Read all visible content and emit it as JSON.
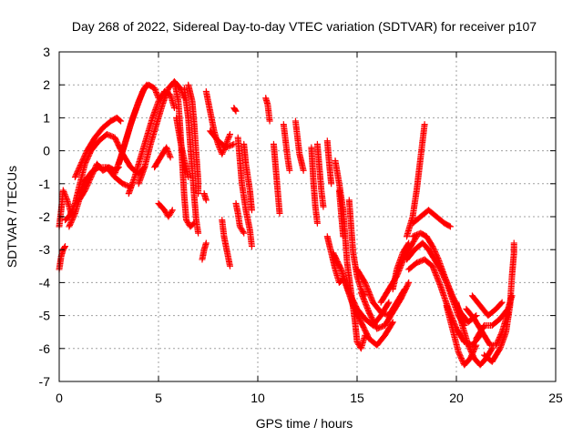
{
  "chart_data": {
    "type": "scatter",
    "title": "Day 268 of 2022, Sidereal Day-to-day VTEC variation (SDTVAR) for receiver p107",
    "xlabel": "GPS time / hours",
    "ylabel": "SDTVAR / TECUs",
    "xlim": [
      0,
      25
    ],
    "ylim": [
      -7,
      3
    ],
    "xticks": [
      "0",
      "5",
      "10",
      "15",
      "20",
      "25"
    ],
    "yticks": [
      "-7",
      "-6",
      "-5",
      "-4",
      "-3",
      "-2",
      "-1",
      "0",
      "1",
      "2",
      "3"
    ],
    "grid": true,
    "marker": "+",
    "series_color": "#ff0000",
    "tracks": [
      [
        [
          0.0,
          -2.3
        ],
        [
          0.1,
          -1.8
        ],
        [
          0.2,
          -1.2
        ],
        [
          0.4,
          -1.5
        ],
        [
          0.6,
          -1.9
        ]
      ],
      [
        [
          0.0,
          -3.6
        ],
        [
          0.1,
          -3.2
        ],
        [
          0.2,
          -3.0
        ],
        [
          0.3,
          -2.9
        ]
      ],
      [
        [
          0.3,
          -2.1
        ],
        [
          0.5,
          -2.0
        ],
        [
          0.8,
          -1.6
        ],
        [
          1.0,
          -1.1
        ],
        [
          1.3,
          -0.4
        ],
        [
          1.6,
          0.0
        ],
        [
          2.0,
          0.3
        ],
        [
          2.4,
          0.5
        ],
        [
          2.8,
          0.4
        ],
        [
          3.2,
          -0.1
        ],
        [
          3.6,
          -0.5
        ],
        [
          4.0,
          -0.7
        ],
        [
          4.3,
          -0.5
        ]
      ],
      [
        [
          0.5,
          -2.3
        ],
        [
          0.8,
          -1.9
        ],
        [
          1.0,
          -1.5
        ],
        [
          1.3,
          -1.2
        ],
        [
          1.6,
          -0.8
        ],
        [
          1.9,
          -0.4
        ],
        [
          2.2,
          -0.6
        ],
        [
          2.5,
          -0.5
        ],
        [
          2.8,
          -0.6
        ],
        [
          3.0,
          -0.5
        ]
      ],
      [
        [
          0.8,
          -0.8
        ],
        [
          1.1,
          -0.4
        ],
        [
          1.4,
          0.0
        ],
        [
          1.8,
          0.4
        ],
        [
          2.2,
          0.7
        ],
        [
          2.6,
          0.9
        ],
        [
          2.9,
          1.0
        ],
        [
          3.1,
          0.9
        ]
      ],
      [
        [
          1.0,
          -1.3
        ],
        [
          1.3,
          -0.9
        ],
        [
          1.7,
          -0.6
        ],
        [
          2.0,
          -0.5
        ],
        [
          2.4,
          -0.5
        ],
        [
          2.8,
          -0.8
        ],
        [
          3.2,
          -1.0
        ],
        [
          3.6,
          -1.1
        ]
      ],
      [
        [
          2.8,
          -0.7
        ],
        [
          3.1,
          -0.2
        ],
        [
          3.4,
          0.4
        ],
        [
          3.7,
          1.0
        ],
        [
          4.0,
          1.5
        ],
        [
          4.3,
          1.9
        ],
        [
          4.5,
          2.0
        ],
        [
          4.8,
          1.9
        ],
        [
          5.0,
          1.6
        ]
      ],
      [
        [
          3.5,
          -1.3
        ],
        [
          3.8,
          -0.8
        ],
        [
          4.1,
          -0.2
        ],
        [
          4.4,
          0.4
        ],
        [
          4.7,
          1.0
        ],
        [
          5.0,
          1.5
        ],
        [
          5.3,
          1.8
        ],
        [
          5.6,
          1.7
        ],
        [
          5.8,
          1.3
        ]
      ],
      [
        [
          4.0,
          -1.0
        ],
        [
          4.3,
          -0.5
        ],
        [
          4.6,
          0.2
        ],
        [
          4.9,
          0.8
        ],
        [
          5.2,
          1.4
        ],
        [
          5.5,
          1.9
        ],
        [
          5.8,
          2.1
        ],
        [
          6.1,
          1.9
        ],
        [
          6.3,
          1.6
        ]
      ],
      [
        [
          3.0,
          -0.4
        ],
        [
          3.3,
          0.2
        ],
        [
          3.6,
          0.8
        ],
        [
          3.9,
          1.3
        ],
        [
          4.2,
          1.8
        ],
        [
          4.4,
          2.0
        ]
      ],
      [
        [
          5.0,
          -1.6
        ],
        [
          5.3,
          -1.8
        ],
        [
          5.5,
          -2.0
        ],
        [
          5.7,
          -1.8
        ]
      ],
      [
        [
          4.8,
          -0.5
        ],
        [
          5.1,
          -0.2
        ],
        [
          5.4,
          0.1
        ],
        [
          5.6,
          -0.2
        ]
      ],
      [
        [
          5.8,
          2.1
        ],
        [
          6.0,
          1.5
        ],
        [
          6.1,
          0.6
        ],
        [
          6.2,
          -0.4
        ],
        [
          6.3,
          -1.4
        ],
        [
          6.4,
          -2.1
        ],
        [
          6.6,
          -2.3
        ],
        [
          6.8,
          -2.2
        ]
      ],
      [
        [
          6.3,
          1.9
        ],
        [
          6.5,
          1.0
        ],
        [
          6.6,
          0.2
        ],
        [
          6.7,
          -0.6
        ],
        [
          6.8,
          -1.4
        ],
        [
          6.9,
          -2.1
        ],
        [
          7.0,
          -2.5
        ]
      ],
      [
        [
          6.5,
          2.0
        ],
        [
          6.7,
          1.5
        ],
        [
          6.8,
          0.8
        ],
        [
          6.9,
          -0.1
        ],
        [
          7.0,
          -0.9
        ],
        [
          7.0,
          -1.3
        ]
      ],
      [
        [
          5.9,
          1.0
        ],
        [
          6.1,
          0.3
        ],
        [
          6.3,
          -0.3
        ],
        [
          6.5,
          -0.8
        ]
      ],
      [
        [
          7.4,
          1.8
        ],
        [
          7.6,
          1.2
        ],
        [
          7.8,
          0.6
        ],
        [
          8.0,
          0.2
        ],
        [
          8.2,
          -0.1
        ],
        [
          8.4,
          0.2
        ],
        [
          8.6,
          0.5
        ]
      ],
      [
        [
          7.6,
          0.6
        ],
        [
          8.0,
          0.3
        ],
        [
          8.4,
          0.1
        ],
        [
          8.8,
          0.2
        ]
      ],
      [
        [
          7.3,
          -1.3
        ],
        [
          7.4,
          -1.5
        ]
      ],
      [
        [
          7.2,
          -3.3
        ],
        [
          7.3,
          -3.0
        ],
        [
          7.4,
          -2.8
        ]
      ],
      [
        [
          8.2,
          -2.1
        ],
        [
          8.3,
          -2.6
        ],
        [
          8.5,
          -3.2
        ],
        [
          8.6,
          -3.5
        ]
      ],
      [
        [
          8.8,
          1.3
        ],
        [
          8.9,
          1.2
        ]
      ],
      [
        [
          8.9,
          -1.6
        ],
        [
          9.0,
          -1.9
        ],
        [
          9.1,
          -2.3
        ],
        [
          9.3,
          -2.5
        ]
      ],
      [
        [
          9.0,
          0.4
        ],
        [
          9.1,
          -0.3
        ],
        [
          9.2,
          -1.0
        ],
        [
          9.4,
          -1.8
        ],
        [
          9.6,
          -2.4
        ],
        [
          9.7,
          -2.9
        ]
      ],
      [
        [
          9.3,
          0.2
        ],
        [
          9.4,
          -0.4
        ],
        [
          9.6,
          -1.2
        ],
        [
          9.7,
          -1.8
        ]
      ],
      [
        [
          10.4,
          1.6
        ],
        [
          10.5,
          1.4
        ],
        [
          10.6,
          0.9
        ]
      ],
      [
        [
          10.8,
          0.2
        ],
        [
          10.9,
          -0.5
        ],
        [
          11.0,
          -1.2
        ],
        [
          11.1,
          -1.9
        ]
      ],
      [
        [
          11.3,
          0.8
        ],
        [
          11.4,
          0.3
        ],
        [
          11.5,
          -0.2
        ],
        [
          11.6,
          -0.6
        ]
      ],
      [
        [
          11.9,
          0.9
        ],
        [
          12.0,
          0.4
        ],
        [
          12.1,
          -0.1
        ],
        [
          12.3,
          -0.6
        ]
      ],
      [
        [
          12.7,
          0.1
        ],
        [
          12.8,
          -0.9
        ],
        [
          12.9,
          -1.7
        ],
        [
          13.0,
          -2.2
        ]
      ],
      [
        [
          13.0,
          0.2
        ],
        [
          13.1,
          -0.5
        ],
        [
          13.2,
          -1.2
        ],
        [
          13.3,
          -1.7
        ]
      ],
      [
        [
          13.5,
          0.3
        ],
        [
          13.6,
          -0.4
        ],
        [
          13.7,
          -1.0
        ]
      ],
      [
        [
          13.5,
          -2.6
        ],
        [
          13.7,
          -3.1
        ],
        [
          13.9,
          -3.6
        ],
        [
          14.1,
          -4.0
        ],
        [
          14.3,
          -3.9
        ]
      ],
      [
        [
          13.9,
          -0.3
        ],
        [
          14.1,
          -1.0
        ],
        [
          14.3,
          -1.8
        ],
        [
          14.4,
          -2.6
        ],
        [
          14.5,
          -3.4
        ],
        [
          14.7,
          -4.3
        ],
        [
          14.9,
          -5.2
        ],
        [
          15.0,
          -5.8
        ],
        [
          15.2,
          -6.0
        ],
        [
          15.4,
          -5.6
        ]
      ],
      [
        [
          14.1,
          -1.2
        ],
        [
          14.2,
          -1.9
        ],
        [
          14.3,
          -2.6
        ]
      ],
      [
        [
          14.6,
          -1.5
        ],
        [
          14.7,
          -2.3
        ],
        [
          14.8,
          -3.1
        ],
        [
          15.0,
          -3.8
        ],
        [
          15.2,
          -4.2
        ],
        [
          15.4,
          -4.4
        ]
      ],
      [
        [
          13.8,
          -3.1
        ],
        [
          14.2,
          -3.6
        ],
        [
          14.6,
          -4.3
        ],
        [
          15.0,
          -4.8
        ],
        [
          15.4,
          -5.1
        ],
        [
          15.8,
          -5.3
        ],
        [
          16.2,
          -5.0
        ],
        [
          16.6,
          -4.6
        ]
      ],
      [
        [
          14.4,
          -4.0
        ],
        [
          14.8,
          -4.7
        ],
        [
          15.2,
          -5.2
        ],
        [
          15.6,
          -5.7
        ],
        [
          16.0,
          -5.9
        ],
        [
          16.4,
          -5.6
        ],
        [
          16.8,
          -5.2
        ]
      ],
      [
        [
          15.0,
          -3.6
        ],
        [
          15.4,
          -4.0
        ],
        [
          15.8,
          -4.6
        ],
        [
          16.2,
          -4.9
        ],
        [
          16.6,
          -5.0
        ],
        [
          17.0,
          -4.6
        ],
        [
          17.4,
          -4.2
        ]
      ],
      [
        [
          15.2,
          -4.3
        ],
        [
          15.6,
          -4.9
        ],
        [
          16.0,
          -5.4
        ],
        [
          16.4,
          -5.3
        ],
        [
          16.8,
          -4.9
        ],
        [
          17.2,
          -4.5
        ],
        [
          17.6,
          -4.0
        ]
      ],
      [
        [
          16.2,
          -4.6
        ],
        [
          16.6,
          -4.2
        ],
        [
          17.0,
          -3.8
        ],
        [
          17.4,
          -3.2
        ],
        [
          17.8,
          -2.8
        ],
        [
          18.0,
          -2.6
        ]
      ],
      [
        [
          16.8,
          -4.2
        ],
        [
          17.0,
          -3.6
        ],
        [
          17.3,
          -3.1
        ],
        [
          17.6,
          -2.8
        ]
      ],
      [
        [
          17.5,
          -2.6
        ],
        [
          17.8,
          -2.0
        ],
        [
          18.0,
          -1.2
        ],
        [
          18.2,
          -0.2
        ],
        [
          18.3,
          0.3
        ],
        [
          18.4,
          0.8
        ]
      ],
      [
        [
          17.8,
          -2.2
        ],
        [
          18.2,
          -2.0
        ],
        [
          18.6,
          -1.8
        ],
        [
          19.0,
          -2.0
        ],
        [
          19.4,
          -2.2
        ],
        [
          19.7,
          -2.3
        ]
      ],
      [
        [
          17.5,
          -3.3
        ],
        [
          17.9,
          -3.0
        ],
        [
          18.3,
          -2.8
        ],
        [
          18.6,
          -3.0
        ],
        [
          18.9,
          -3.3
        ],
        [
          19.2,
          -3.6
        ],
        [
          19.5,
          -4.0
        ],
        [
          19.8,
          -4.5
        ],
        [
          20.1,
          -5.0
        ],
        [
          20.4,
          -5.3
        ]
      ],
      [
        [
          17.8,
          -2.6
        ],
        [
          18.2,
          -2.5
        ],
        [
          18.5,
          -2.6
        ],
        [
          18.8,
          -2.9
        ],
        [
          19.1,
          -3.3
        ],
        [
          19.4,
          -3.8
        ],
        [
          19.8,
          -4.4
        ],
        [
          20.2,
          -4.9
        ],
        [
          20.6,
          -5.2
        ],
        [
          21.0,
          -5.0
        ]
      ],
      [
        [
          17.6,
          -3.6
        ],
        [
          18.0,
          -3.4
        ],
        [
          18.4,
          -3.3
        ],
        [
          18.8,
          -3.5
        ],
        [
          19.2,
          -4.1
        ],
        [
          19.6,
          -4.8
        ],
        [
          20.0,
          -5.4
        ],
        [
          20.4,
          -5.8
        ],
        [
          20.8,
          -5.9
        ],
        [
          21.2,
          -5.6
        ]
      ],
      [
        [
          19.5,
          -4.7
        ],
        [
          19.8,
          -5.4
        ],
        [
          20.1,
          -6.1
        ],
        [
          20.4,
          -6.5
        ],
        [
          20.7,
          -6.3
        ],
        [
          21.0,
          -5.9
        ]
      ],
      [
        [
          20.0,
          -4.6
        ],
        [
          20.3,
          -5.3
        ],
        [
          20.6,
          -5.9
        ],
        [
          20.9,
          -6.3
        ],
        [
          21.2,
          -6.5
        ],
        [
          21.5,
          -6.3
        ],
        [
          21.8,
          -6.0
        ]
      ],
      [
        [
          20.5,
          -4.8
        ],
        [
          20.9,
          -5.1
        ],
        [
          21.3,
          -5.5
        ],
        [
          21.7,
          -5.9
        ],
        [
          22.0,
          -5.9
        ],
        [
          22.3,
          -5.5
        ],
        [
          22.6,
          -4.9
        ]
      ],
      [
        [
          21.0,
          -5.7
        ],
        [
          21.4,
          -5.3
        ],
        [
          21.8,
          -5.3
        ],
        [
          22.2,
          -5.1
        ],
        [
          22.6,
          -4.8
        ],
        [
          22.8,
          -4.4
        ]
      ],
      [
        [
          21.4,
          -6.2
        ],
        [
          21.8,
          -6.4
        ],
        [
          22.2,
          -6.0
        ],
        [
          22.5,
          -5.5
        ],
        [
          22.7,
          -4.7
        ],
        [
          22.8,
          -3.8
        ],
        [
          22.9,
          -3.1
        ],
        [
          22.9,
          -2.8
        ]
      ],
      [
        [
          20.8,
          -4.4
        ],
        [
          21.2,
          -4.7
        ],
        [
          21.6,
          -5.0
        ],
        [
          22.0,
          -4.8
        ],
        [
          22.3,
          -4.6
        ]
      ]
    ]
  }
}
